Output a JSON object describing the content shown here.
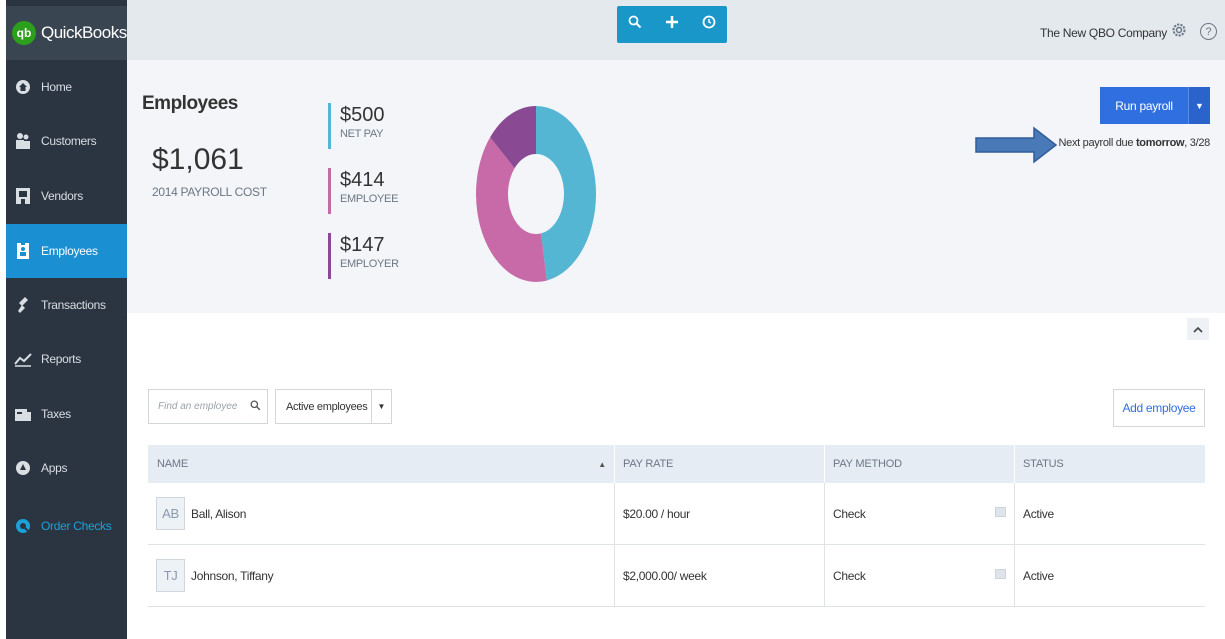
{
  "app": {
    "logo_text": "QuickBooks",
    "logo_badge": "qb"
  },
  "sidebar": {
    "items": [
      {
        "label": "Home",
        "icon": "home-icon"
      },
      {
        "label": "Customers",
        "icon": "customers-icon"
      },
      {
        "label": "Vendors",
        "icon": "vendors-icon"
      },
      {
        "label": "Employees",
        "icon": "employees-icon",
        "active": true
      },
      {
        "label": "Transactions",
        "icon": "transactions-icon"
      },
      {
        "label": "Reports",
        "icon": "reports-icon"
      },
      {
        "label": "Taxes",
        "icon": "taxes-icon"
      },
      {
        "label": "Apps",
        "icon": "apps-icon"
      },
      {
        "label": "Order Checks",
        "icon": "order-checks-icon"
      }
    ]
  },
  "topbar": {
    "tools": [
      "search-icon",
      "plus-icon",
      "clock-icon"
    ],
    "company_name": "The New QBO Company",
    "help_label": "?"
  },
  "summary": {
    "title": "Employees",
    "total_cost": "$1,061",
    "total_label": "2014 PAYROLL COST",
    "breakdown": [
      {
        "amount": "$500",
        "label": "NET PAY",
        "color": "#55b6d3",
        "value": 500
      },
      {
        "amount": "$414",
        "label": "EMPLOYEE",
        "color": "#c76aa7",
        "value": 414
      },
      {
        "amount": "$147",
        "label": "EMPLOYER",
        "color": "#8a4a93",
        "value": 147
      }
    ],
    "run_payroll_label": "Run payroll",
    "next_payroll_prefix": "Next payroll due ",
    "next_payroll_bold": "tomorrow",
    "next_payroll_suffix": ", 3/28"
  },
  "filters": {
    "search_placeholder": "Find an employee",
    "status_filter": "Active employees",
    "add_employee_label": "Add employee"
  },
  "table": {
    "columns": [
      "NAME",
      "PAY RATE",
      "PAY METHOD",
      "STATUS"
    ],
    "rows": [
      {
        "initials": "AB",
        "name": "Ball, Alison",
        "pay_rate": "$20.00 / hour",
        "pay_method": "Check",
        "status": "Active"
      },
      {
        "initials": "TJ",
        "name": "Johnson, Tiffany",
        "pay_rate": "$2,000.00/ week",
        "pay_method": "Check",
        "status": "Active"
      }
    ]
  },
  "colors": {
    "accent": "#1a8fd1",
    "sidebar": "#2b3441",
    "button": "#2f6fe0"
  }
}
